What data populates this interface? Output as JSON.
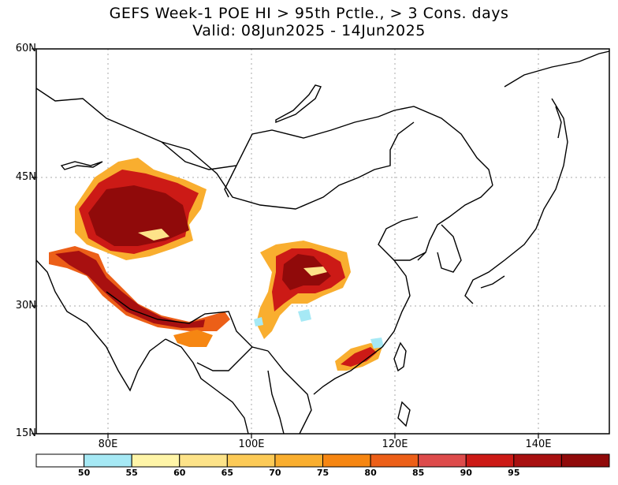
{
  "title_line1": "GEFS Week-1 POE HI > 95th Pctle., > 3 Cons. days",
  "title_line2": "Valid: 08Jun2025 - 14Jun2025",
  "lat_labels": [
    "60N",
    "45N",
    "30N",
    "15N"
  ],
  "lon_labels": [
    "80E",
    "100E",
    "120E",
    "140E"
  ],
  "map_extent": {
    "lon_min": 70,
    "lon_max": 150,
    "lat_min": 15,
    "lat_max": 60
  },
  "colorbar": {
    "thresholds": [
      "50",
      "55",
      "60",
      "65",
      "70",
      "75",
      "80",
      "85",
      "90",
      "95"
    ],
    "colors": [
      "#ffffff",
      "#a6e9f5",
      "#fff5a8",
      "#fde389",
      "#fcca57",
      "#f9ae2f",
      "#f68612",
      "#ec5f18",
      "#dd4b4b",
      "#cc1a16",
      "#a81010",
      "#900a0a"
    ]
  },
  "colors": {
    "coast": "#000000",
    "grid": "#aaaaaa"
  }
}
